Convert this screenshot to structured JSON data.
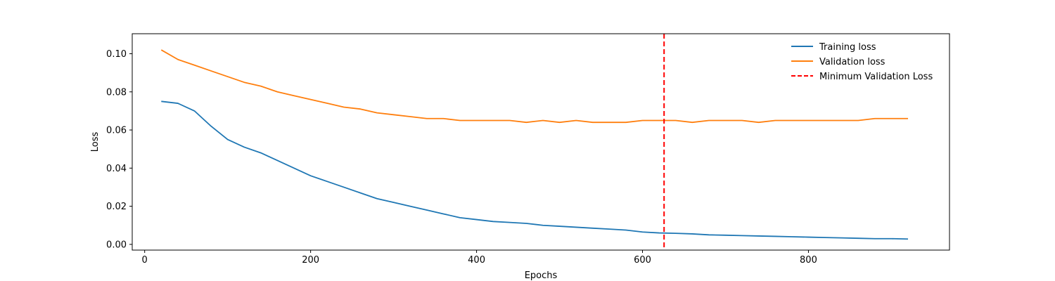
{
  "chart_data": {
    "type": "line",
    "title": "",
    "xlabel": "Epochs",
    "ylabel": "Loss",
    "xlim": [
      -15,
      970
    ],
    "ylim": [
      -0.003,
      0.1105
    ],
    "xticks": [
      0,
      200,
      400,
      600,
      800
    ],
    "xtick_labels": [
      "0",
      "200",
      "400",
      "600",
      "800"
    ],
    "yticks": [
      0.0,
      0.02,
      0.04,
      0.06,
      0.08,
      0.1
    ],
    "ytick_labels": [
      "0.00",
      "0.02",
      "0.04",
      "0.06",
      "0.08",
      "0.10"
    ],
    "grid": false,
    "legend_position": "top-right",
    "series": [
      {
        "name": "Training loss",
        "color": "#1f77b4",
        "x": [
          20,
          40,
          60,
          80,
          100,
          120,
          140,
          160,
          180,
          200,
          220,
          240,
          260,
          280,
          300,
          320,
          340,
          360,
          380,
          400,
          420,
          440,
          460,
          480,
          500,
          520,
          540,
          560,
          580,
          600,
          620,
          640,
          660,
          680,
          700,
          720,
          740,
          760,
          780,
          800,
          820,
          840,
          860,
          880,
          900,
          920
        ],
        "y": [
          0.075,
          0.074,
          0.07,
          0.062,
          0.055,
          0.051,
          0.048,
          0.044,
          0.04,
          0.036,
          0.033,
          0.03,
          0.027,
          0.024,
          0.022,
          0.02,
          0.018,
          0.016,
          0.014,
          0.013,
          0.012,
          0.0115,
          0.011,
          0.01,
          0.0095,
          0.009,
          0.0085,
          0.008,
          0.0075,
          0.0065,
          0.006,
          0.0058,
          0.0055,
          0.005,
          0.0048,
          0.0046,
          0.0044,
          0.0042,
          0.004,
          0.0038,
          0.0036,
          0.0034,
          0.0032,
          0.003,
          0.003,
          0.0028
        ]
      },
      {
        "name": "Validation loss",
        "color": "#ff7f0e",
        "x": [
          20,
          40,
          60,
          80,
          100,
          120,
          140,
          160,
          180,
          200,
          220,
          240,
          260,
          280,
          300,
          320,
          340,
          360,
          380,
          400,
          420,
          440,
          460,
          480,
          500,
          520,
          540,
          560,
          580,
          600,
          620,
          640,
          660,
          680,
          700,
          720,
          740,
          760,
          780,
          800,
          820,
          840,
          860,
          880,
          900,
          920
        ],
        "y": [
          0.102,
          0.097,
          0.094,
          0.091,
          0.088,
          0.085,
          0.083,
          0.08,
          0.078,
          0.076,
          0.074,
          0.072,
          0.071,
          0.069,
          0.068,
          0.067,
          0.066,
          0.066,
          0.065,
          0.065,
          0.065,
          0.065,
          0.064,
          0.065,
          0.064,
          0.065,
          0.064,
          0.064,
          0.064,
          0.065,
          0.065,
          0.065,
          0.064,
          0.065,
          0.065,
          0.065,
          0.064,
          0.065,
          0.065,
          0.065,
          0.065,
          0.065,
          0.065,
          0.066,
          0.066,
          0.066
        ]
      }
    ],
    "vline": {
      "name": "Minimum Validation Loss",
      "x": 626,
      "color": "#ff0000",
      "style": "dashed"
    }
  }
}
